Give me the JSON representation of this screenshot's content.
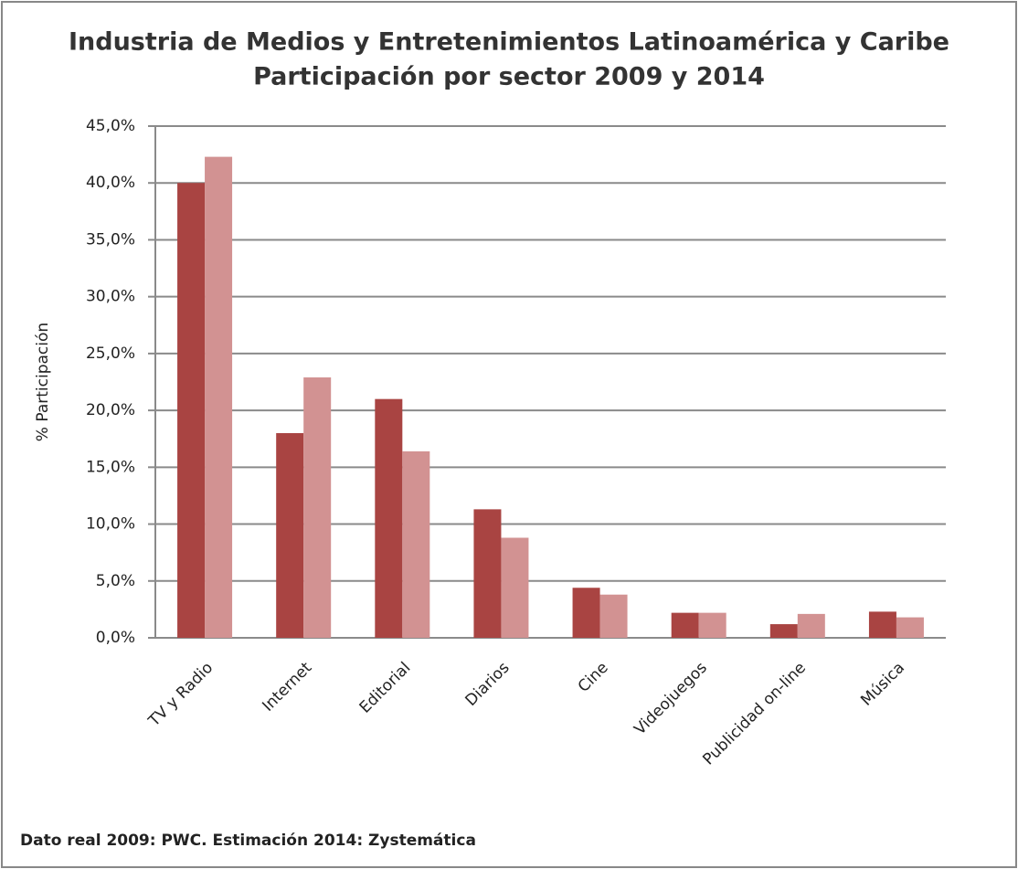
{
  "chart_data": {
    "type": "bar",
    "title": "Industria de Medios y Entretenimientos Latinoamérica y Caribe",
    "subtitle": "Participación por sector 2009 y 2014",
    "y_label": "% Participación",
    "note": "Dato real 2009: PWC. Estimación  2014: Zystemática",
    "categories": [
      "TV y Radio",
      "Internet",
      "Editorial",
      "Diarios",
      "Cine",
      "Videojuegos",
      "Publicidad on-line",
      "Música"
    ],
    "series": [
      {
        "color": "#a94442",
        "values": [
          40.0,
          18.0,
          21.0,
          11.3,
          4.4,
          2.2,
          1.2,
          2.3
        ]
      },
      {
        "color": "#d29292",
        "values": [
          42.3,
          22.9,
          16.4,
          8.8,
          3.8,
          2.2,
          2.1,
          1.8
        ]
      }
    ],
    "ylim": [
      0,
      45
    ],
    "yticks": [
      {
        "value": 0,
        "label": "0,0%"
      },
      {
        "value": 5,
        "label": "5,0%"
      },
      {
        "value": 10,
        "label": "10,0%"
      },
      {
        "value": 15,
        "label": "15,0%"
      },
      {
        "value": 20,
        "label": "20,0%"
      },
      {
        "value": 25,
        "label": "25,0%"
      },
      {
        "value": 30,
        "label": "30,0%"
      },
      {
        "value": 35,
        "label": "35,0%"
      },
      {
        "value": 40,
        "label": "40,0%"
      },
      {
        "value": 45,
        "label": "45,0%"
      }
    ],
    "grid": true
  }
}
